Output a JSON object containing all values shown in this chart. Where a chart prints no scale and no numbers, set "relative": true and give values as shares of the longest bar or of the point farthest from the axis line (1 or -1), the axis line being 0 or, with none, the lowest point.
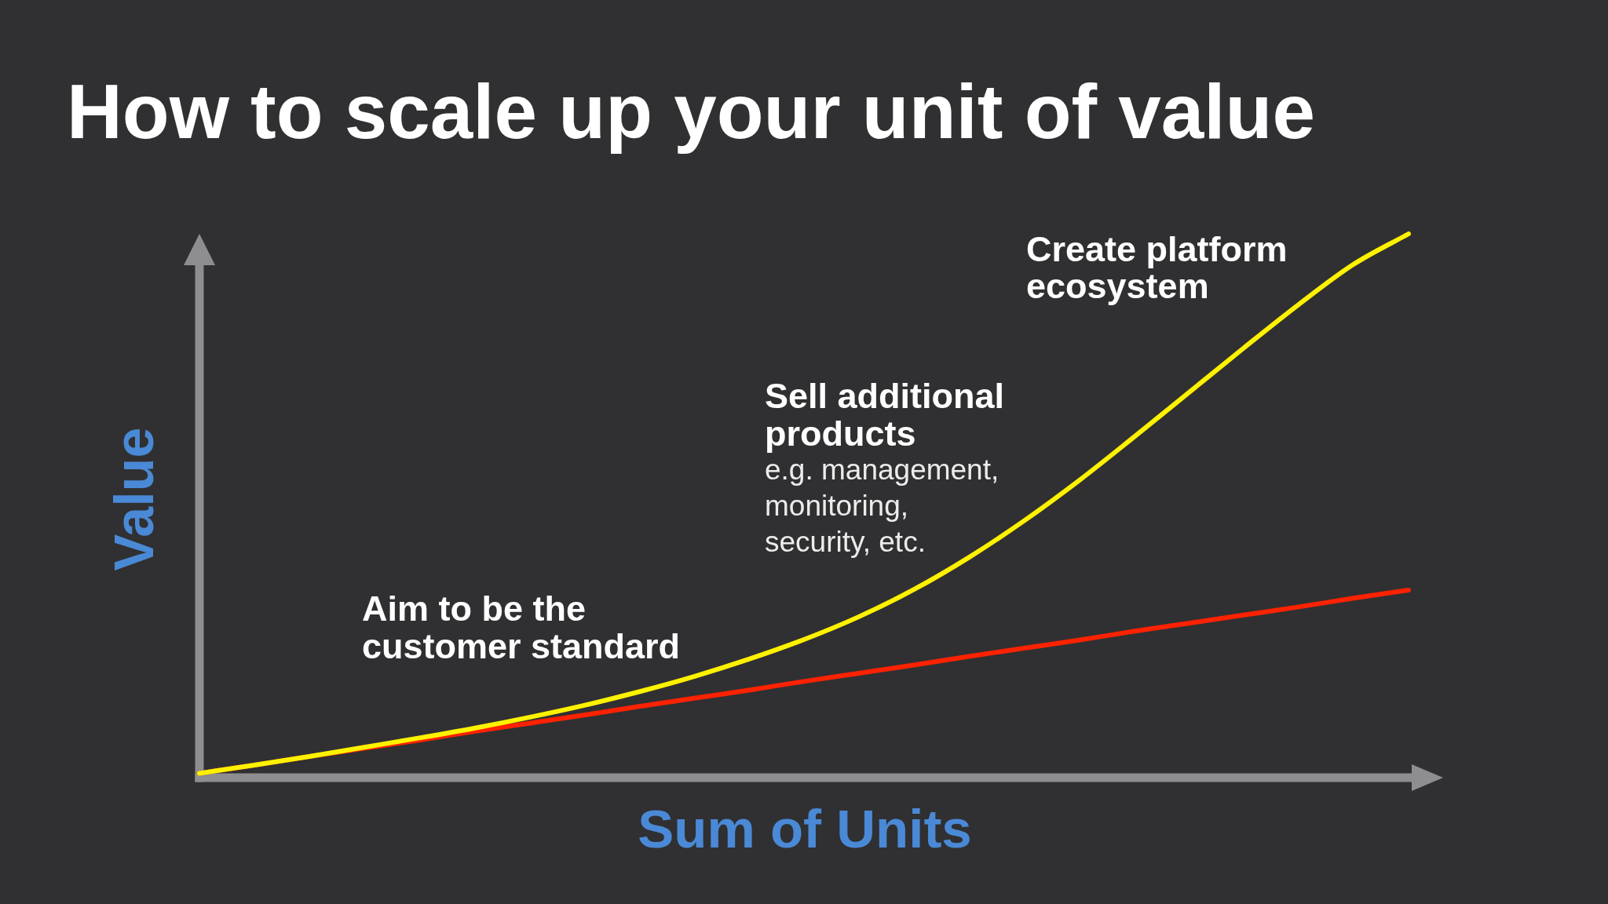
{
  "chart_data": {
    "type": "line",
    "title": "How to scale up your unit of value",
    "xlabel": "Sum of Units",
    "ylabel": "Value",
    "relative": true,
    "marker": "none",
    "categories": [
      null,
      null,
      null,
      null,
      null,
      null,
      null,
      null,
      null,
      null,
      null,
      null,
      null,
      null,
      null,
      null,
      null,
      null,
      null,
      null,
      null,
      null,
      null
    ],
    "series": [
      {
        "color": "#fff200",
        "values": [
          0.008,
          0.023,
          0.039,
          0.056,
          0.073,
          0.091,
          0.111,
          0.133,
          0.158,
          0.186,
          0.218,
          0.254,
          0.296,
          0.346,
          0.405,
          0.472,
          0.546,
          0.626,
          0.708,
          0.79,
          0.87,
          0.944,
          1
        ]
      },
      {
        "color": "#ff2200",
        "values": [
          0.008,
          0.023,
          0.039,
          0.054,
          0.069,
          0.085,
          0.1,
          0.115,
          0.131,
          0.146,
          0.161,
          0.177,
          0.192,
          0.207,
          0.223,
          0.238,
          0.253,
          0.269,
          0.284,
          0.299,
          0.314,
          0.33,
          0.345
        ]
      }
    ],
    "annotations": [
      "Aim to be the customer standard",
      "Sell additional products",
      "e.g. management, monitoring, security, etc.",
      "Create platform ecosystem"
    ]
  }
}
